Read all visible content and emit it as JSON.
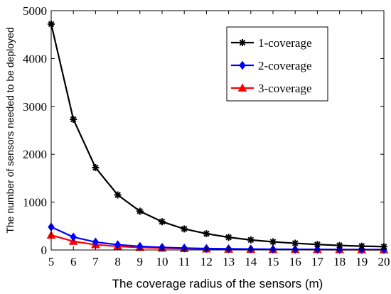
{
  "chart_data": {
    "type": "line",
    "xlabel": "The coverage radius of the sensors (m)",
    "ylabel": "The number of  sensors needed to be deployed",
    "x": [
      5,
      6,
      7,
      8,
      9,
      10,
      11,
      12,
      13,
      14,
      15,
      16,
      17,
      18,
      19,
      20
    ],
    "xlim": [
      5,
      20
    ],
    "ylim": [
      0,
      5000
    ],
    "xticks": [
      "5",
      "6",
      "7",
      "8",
      "9",
      "10",
      "11",
      "12",
      "13",
      "14",
      "15",
      "16",
      "17",
      "18",
      "19",
      "20"
    ],
    "yticks": [
      "0",
      "1000",
      "2000",
      "3000",
      "4000",
      "5000"
    ],
    "legend_position": "top-right",
    "grid": false,
    "series": [
      {
        "name": "1-coverage",
        "color": "#000000",
        "marker": "asterisk",
        "values": [
          4720,
          2730,
          1720,
          1150,
          810,
          590,
          440,
          340,
          265,
          210,
          170,
          140,
          115,
          95,
          80,
          70
        ]
      },
      {
        "name": "2-coverage",
        "color": "#0000ff",
        "marker": "diamond",
        "values": [
          480,
          270,
          165,
          110,
          75,
          55,
          40,
          30,
          24,
          19,
          15,
          13,
          11,
          9,
          8,
          7
        ]
      },
      {
        "name": "3-coverage",
        "color": "#ff0000",
        "marker": "triangle",
        "values": [
          310,
          180,
          110,
          75,
          52,
          38,
          28,
          21,
          16,
          13,
          10,
          9,
          7,
          6,
          5,
          5
        ]
      }
    ]
  }
}
